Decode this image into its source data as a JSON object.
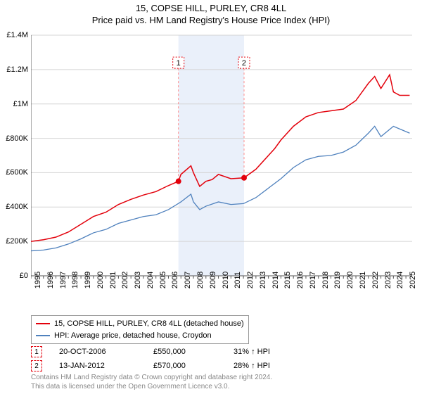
{
  "title_line1": "15, COPSE HILL, PURLEY, CR8 4LL",
  "title_line2": "Price paid vs. HM Land Registry's House Price Index (HPI)",
  "chart": {
    "type": "line",
    "background_color": "#ffffff",
    "grid_color": "#d4d4d4",
    "shaded_band_color": "#eaf0fa",
    "shaded_band_xstart": 2006.8,
    "shaded_band_xend": 2012.05,
    "axis_color": "#555555",
    "y": {
      "min": 0,
      "max": 1400000,
      "step": 200000,
      "ticks": [
        0,
        200000,
        400000,
        600000,
        800000,
        1000000,
        1200000,
        1400000
      ],
      "labels": [
        "£0",
        "£200K",
        "£400K",
        "£600K",
        "£800K",
        "£1M",
        "£1.2M",
        "£1.4M"
      ],
      "fontsize": 11
    },
    "x": {
      "min": 1995,
      "max": 2025.5,
      "ticks": [
        1995,
        1996,
        1997,
        1998,
        1999,
        2000,
        2001,
        2002,
        2003,
        2004,
        2005,
        2006,
        2007,
        2008,
        2009,
        2010,
        2011,
        2012,
        2013,
        2014,
        2015,
        2016,
        2017,
        2018,
        2019,
        2020,
        2021,
        2022,
        2023,
        2024,
        2025
      ],
      "fontsize": 11
    },
    "series": [
      {
        "name": "15, COPSE HILL, PURLEY, CR8 4LL (detached house)",
        "color": "#e3000b",
        "line_width": 1.5,
        "x": [
          1995,
          1996,
          1997,
          1998,
          1999,
          2000,
          2001,
          2002,
          2003,
          2004,
          2005,
          2006,
          2006.8,
          2007,
          2007.8,
          2008,
          2008.5,
          2009,
          2009.5,
          2010,
          2011,
          2012.05,
          2013,
          2014,
          2014.5,
          2015,
          2016,
          2017,
          2018,
          2019,
          2020,
          2021,
          2022,
          2022.5,
          2023,
          2023.7,
          2024,
          2024.5,
          2025.3
        ],
        "y": [
          200000,
          210000,
          225000,
          255000,
          300000,
          345000,
          370000,
          415000,
          445000,
          470000,
          490000,
          525000,
          550000,
          590000,
          640000,
          600000,
          520000,
          550000,
          560000,
          590000,
          565000,
          570000,
          620000,
          700000,
          740000,
          790000,
          870000,
          925000,
          950000,
          960000,
          970000,
          1020000,
          1120000,
          1160000,
          1090000,
          1170000,
          1070000,
          1050000,
          1050000
        ]
      },
      {
        "name": "HPI: Average price, detached house, Croydon",
        "color": "#4f81bd",
        "line_width": 1.3,
        "x": [
          1995,
          1996,
          1997,
          1998,
          1999,
          2000,
          2001,
          2002,
          2003,
          2004,
          2005,
          2006,
          2007,
          2007.8,
          2008,
          2008.5,
          2009,
          2010,
          2011,
          2012,
          2013,
          2014,
          2015,
          2016,
          2017,
          2018,
          2019,
          2020,
          2021,
          2022,
          2022.5,
          2023,
          2024,
          2025.3
        ],
        "y": [
          145000,
          150000,
          162000,
          185000,
          215000,
          250000,
          270000,
          305000,
          325000,
          345000,
          355000,
          385000,
          430000,
          475000,
          430000,
          385000,
          405000,
          430000,
          415000,
          420000,
          455000,
          510000,
          565000,
          630000,
          675000,
          695000,
          700000,
          720000,
          760000,
          830000,
          870000,
          810000,
          870000,
          830000
        ]
      }
    ],
    "markers": [
      {
        "n": "1",
        "x": 2006.8,
        "y": 550000,
        "label_y": 1240000,
        "color": "#e3000b",
        "dash_color": "#ff8a8a"
      },
      {
        "n": "2",
        "x": 2012.05,
        "y": 570000,
        "label_y": 1240000,
        "color": "#e3000b",
        "dash_color": "#ff8a8a"
      }
    ]
  },
  "legend": {
    "border_color": "#999999",
    "items": [
      {
        "color": "#e3000b",
        "label": "15, COPSE HILL, PURLEY, CR8 4LL (detached house)"
      },
      {
        "color": "#4f81bd",
        "label": "HPI: Average price, detached house, Croydon"
      }
    ]
  },
  "sales": [
    {
      "n": "1",
      "date": "20-OCT-2006",
      "price": "£550,000",
      "delta": "31% ↑ HPI",
      "box_color": "#e3000b"
    },
    {
      "n": "2",
      "date": "13-JAN-2012",
      "price": "£570,000",
      "delta": "28% ↑ HPI",
      "box_color": "#e3000b"
    }
  ],
  "footer_line1": "Contains HM Land Registry data © Crown copyright and database right 2024.",
  "footer_line2": "This data is licensed under the Open Government Licence v3.0."
}
